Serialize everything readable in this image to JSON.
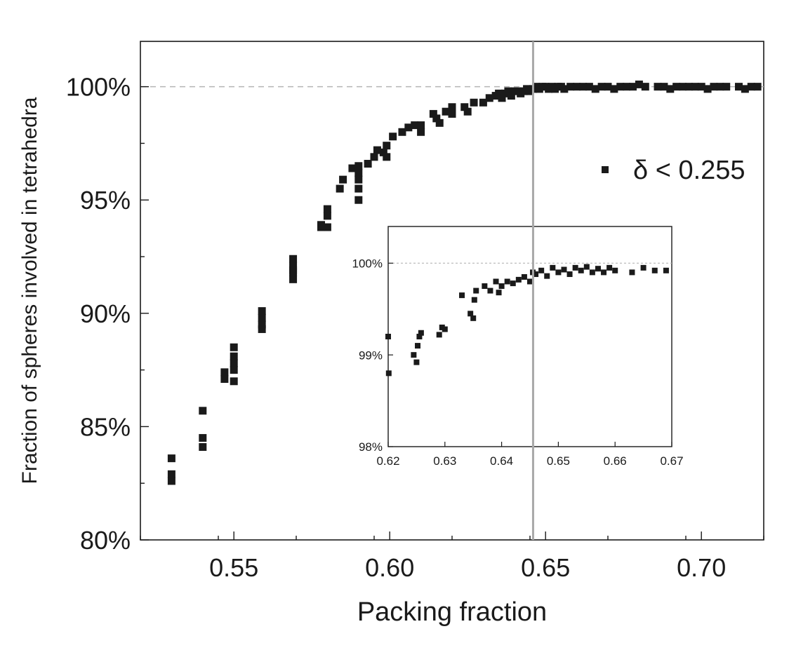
{
  "chart_data": [
    {
      "type": "scatter",
      "title": "",
      "xlabel": "Packing fraction",
      "ylabel": "Fraction of spheres  involved in tetrahedra",
      "xlim": [
        0.52,
        0.72
      ],
      "ylim": [
        80,
        102
      ],
      "x_ticks": [
        0.55,
        0.6,
        0.65,
        0.7
      ],
      "x_tick_labels": [
        "0.55",
        "0.60",
        "0.65",
        "0.70"
      ],
      "y_ticks": [
        80,
        85,
        90,
        95,
        100
      ],
      "y_tick_labels": [
        "80%",
        "85%",
        "90%",
        "95%",
        "100%"
      ],
      "reference_lines": [
        {
          "orientation": "horizontal",
          "value": 100,
          "style": "dashed"
        },
        {
          "orientation": "vertical",
          "value": 0.646,
          "style": "solid"
        }
      ],
      "grid": false,
      "legend": {
        "position": "right",
        "entries": [
          "δ < 0.255"
        ]
      },
      "series": [
        {
          "name": "δ < 0.255",
          "marker": "square",
          "color": "#1a1a1a",
          "points": [
            [
              0.53,
              83.6
            ],
            [
              0.53,
              82.9
            ],
            [
              0.53,
              82.6
            ],
            [
              0.54,
              85.7
            ],
            [
              0.54,
              84.5
            ],
            [
              0.54,
              84.1
            ],
            [
              0.547,
              87.4
            ],
            [
              0.547,
              87.1
            ],
            [
              0.55,
              88.5
            ],
            [
              0.55,
              88.1
            ],
            [
              0.55,
              87.8
            ],
            [
              0.55,
              87.5
            ],
            [
              0.55,
              87.0
            ],
            [
              0.559,
              90.1
            ],
            [
              0.559,
              89.8
            ],
            [
              0.559,
              89.5
            ],
            [
              0.559,
              89.3
            ],
            [
              0.569,
              92.4
            ],
            [
              0.569,
              92.1
            ],
            [
              0.569,
              91.8
            ],
            [
              0.569,
              91.5
            ],
            [
              0.569,
              91.9
            ],
            [
              0.578,
              93.8
            ],
            [
              0.578,
              93.9
            ],
            [
              0.58,
              94.6
            ],
            [
              0.58,
              94.3
            ],
            [
              0.58,
              93.8
            ],
            [
              0.584,
              95.5
            ],
            [
              0.585,
              95.9
            ],
            [
              0.588,
              96.4
            ],
            [
              0.59,
              96.5
            ],
            [
              0.59,
              96.2
            ],
            [
              0.59,
              95.9
            ],
            [
              0.59,
              95.5
            ],
            [
              0.59,
              95.0
            ],
            [
              0.593,
              96.6
            ],
            [
              0.595,
              96.9
            ],
            [
              0.596,
              97.2
            ],
            [
              0.598,
              97.1
            ],
            [
              0.599,
              97.4
            ],
            [
              0.599,
              96.9
            ],
            [
              0.601,
              97.8
            ],
            [
              0.604,
              98.0
            ],
            [
              0.606,
              98.2
            ],
            [
              0.608,
              98.3
            ],
            [
              0.61,
              98.3
            ],
            [
              0.61,
              98.0
            ],
            [
              0.614,
              98.8
            ],
            [
              0.615,
              98.6
            ],
            [
              0.616,
              98.4
            ],
            [
              0.618,
              98.9
            ],
            [
              0.62,
              99.1
            ],
            [
              0.62,
              98.8
            ],
            [
              0.624,
              99.1
            ],
            [
              0.625,
              98.9
            ],
            [
              0.627,
              99.3
            ],
            [
              0.63,
              99.3
            ],
            [
              0.632,
              99.5
            ],
            [
              0.634,
              99.6
            ],
            [
              0.635,
              99.7
            ],
            [
              0.636,
              99.5
            ],
            [
              0.637,
              99.7
            ],
            [
              0.638,
              99.8
            ],
            [
              0.639,
              99.6
            ],
            [
              0.64,
              99.8
            ],
            [
              0.641,
              99.8
            ],
            [
              0.642,
              99.7
            ],
            [
              0.643,
              99.8
            ],
            [
              0.644,
              99.9
            ],
            [
              0.645,
              99.8
            ],
            [
              0.646,
              99.9
            ],
            [
              0.647,
              100.0
            ],
            [
              0.648,
              99.9
            ],
            [
              0.649,
              100.0
            ],
            [
              0.65,
              100.0
            ],
            [
              0.651,
              99.9
            ],
            [
              0.652,
              100.0
            ],
            [
              0.653,
              99.9
            ],
            [
              0.654,
              100.0
            ],
            [
              0.655,
              100.0
            ],
            [
              0.656,
              99.9
            ],
            [
              0.658,
              100.0
            ],
            [
              0.66,
              100.0
            ],
            [
              0.662,
              100.0
            ],
            [
              0.664,
              100.0
            ],
            [
              0.666,
              99.9
            ],
            [
              0.668,
              100.0
            ],
            [
              0.67,
              100.0
            ],
            [
              0.672,
              99.9
            ],
            [
              0.674,
              100.0
            ],
            [
              0.676,
              100.0
            ],
            [
              0.678,
              100.0
            ],
            [
              0.68,
              100.1
            ],
            [
              0.682,
              100.0
            ],
            [
              0.686,
              100.0
            ],
            [
              0.688,
              100.0
            ],
            [
              0.69,
              99.9
            ],
            [
              0.692,
              100.0
            ],
            [
              0.694,
              100.0
            ],
            [
              0.696,
              100.0
            ],
            [
              0.698,
              100.0
            ],
            [
              0.7,
              100.0
            ],
            [
              0.702,
              99.9
            ],
            [
              0.704,
              100.0
            ],
            [
              0.706,
              100.0
            ],
            [
              0.708,
              100.0
            ],
            [
              0.712,
              100.0
            ],
            [
              0.714,
              99.9
            ],
            [
              0.716,
              100.0
            ],
            [
              0.718,
              100.0
            ]
          ]
        }
      ]
    },
    {
      "type": "scatter",
      "title": "",
      "xlabel": "",
      "ylabel": "",
      "xlim": [
        0.62,
        0.67
      ],
      "ylim": [
        98,
        100.4
      ],
      "x_ticks": [
        0.62,
        0.63,
        0.64,
        0.65,
        0.66,
        0.67
      ],
      "x_tick_labels": [
        "0.62",
        "0.63",
        "0.64",
        "0.65",
        "0.66",
        "0.67"
      ],
      "y_ticks": [
        98,
        99,
        100
      ],
      "y_tick_labels": [
        "98%",
        "99%",
        "100%"
      ],
      "reference_lines": [
        {
          "orientation": "horizontal",
          "value": 100,
          "style": "dotted"
        }
      ],
      "grid": false,
      "series": [
        {
          "marker": "square",
          "color": "#1a1a1a",
          "points": [
            [
              0.62,
              99.2
            ],
            [
              0.6201,
              98.8
            ],
            [
              0.6245,
              99.0
            ],
            [
              0.625,
              98.92
            ],
            [
              0.6252,
              99.1
            ],
            [
              0.6255,
              99.2
            ],
            [
              0.6258,
              99.24
            ],
            [
              0.629,
              99.22
            ],
            [
              0.6295,
              99.3
            ],
            [
              0.63,
              99.28
            ],
            [
              0.633,
              99.65
            ],
            [
              0.6345,
              99.45
            ],
            [
              0.635,
              99.4
            ],
            [
              0.6352,
              99.6
            ],
            [
              0.6355,
              99.7
            ],
            [
              0.637,
              99.75
            ],
            [
              0.638,
              99.7
            ],
            [
              0.639,
              99.8
            ],
            [
              0.6395,
              99.68
            ],
            [
              0.64,
              99.75
            ],
            [
              0.641,
              99.8
            ],
            [
              0.642,
              99.78
            ],
            [
              0.643,
              99.82
            ],
            [
              0.644,
              99.85
            ],
            [
              0.645,
              99.8
            ],
            [
              0.6455,
              99.9
            ],
            [
              0.646,
              99.88
            ],
            [
              0.647,
              99.92
            ],
            [
              0.648,
              99.86
            ],
            [
              0.649,
              99.95
            ],
            [
              0.65,
              99.9
            ],
            [
              0.651,
              99.93
            ],
            [
              0.652,
              99.88
            ],
            [
              0.653,
              99.95
            ],
            [
              0.654,
              99.92
            ],
            [
              0.655,
              99.96
            ],
            [
              0.656,
              99.9
            ],
            [
              0.657,
              99.94
            ],
            [
              0.658,
              99.9
            ],
            [
              0.659,
              99.95
            ],
            [
              0.66,
              99.92
            ],
            [
              0.663,
              99.9
            ],
            [
              0.665,
              99.95
            ],
            [
              0.667,
              99.92
            ],
            [
              0.669,
              99.92
            ]
          ]
        }
      ]
    }
  ]
}
